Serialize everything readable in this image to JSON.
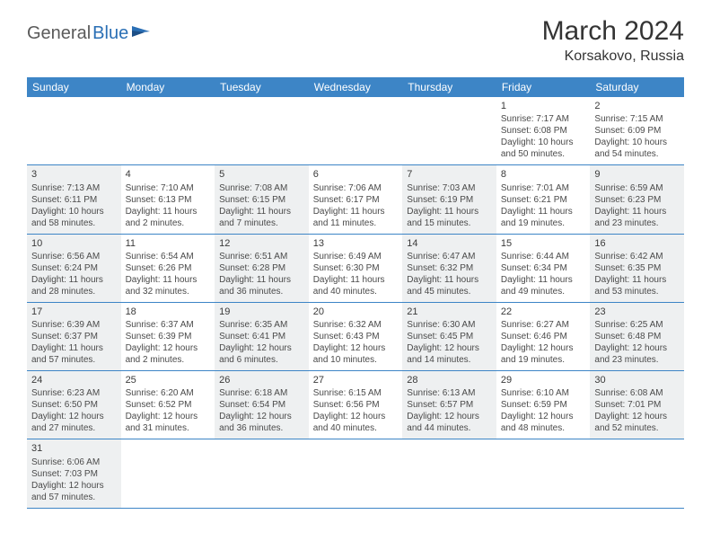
{
  "brand": {
    "name1": "General",
    "name2": "Blue"
  },
  "colors": {
    "header_bg": "#3d85c6",
    "header_text": "#ffffff",
    "row_border": "#3d85c6",
    "shaded_bg": "#eef0f1",
    "plain_bg": "#ffffff",
    "body_text": "#4a4a4a",
    "title_text": "#343434",
    "brand_gray": "#5a5a5a",
    "brand_blue": "#2a6fb5"
  },
  "title": "March 2024",
  "location": "Korsakovo, Russia",
  "day_headers": [
    "Sunday",
    "Monday",
    "Tuesday",
    "Wednesday",
    "Thursday",
    "Friday",
    "Saturday"
  ],
  "weeks": [
    [
      {
        "empty": true
      },
      {
        "empty": true
      },
      {
        "empty": true
      },
      {
        "empty": true
      },
      {
        "empty": true
      },
      {
        "day": "1",
        "sunrise": "Sunrise: 7:17 AM",
        "sunset": "Sunset: 6:08 PM",
        "dl1": "Daylight: 10 hours",
        "dl2": "and 50 minutes."
      },
      {
        "day": "2",
        "sunrise": "Sunrise: 7:15 AM",
        "sunset": "Sunset: 6:09 PM",
        "dl1": "Daylight: 10 hours",
        "dl2": "and 54 minutes."
      }
    ],
    [
      {
        "day": "3",
        "sunrise": "Sunrise: 7:13 AM",
        "sunset": "Sunset: 6:11 PM",
        "dl1": "Daylight: 10 hours",
        "dl2": "and 58 minutes.",
        "shaded": true
      },
      {
        "day": "4",
        "sunrise": "Sunrise: 7:10 AM",
        "sunset": "Sunset: 6:13 PM",
        "dl1": "Daylight: 11 hours",
        "dl2": "and 2 minutes."
      },
      {
        "day": "5",
        "sunrise": "Sunrise: 7:08 AM",
        "sunset": "Sunset: 6:15 PM",
        "dl1": "Daylight: 11 hours",
        "dl2": "and 7 minutes.",
        "shaded": true
      },
      {
        "day": "6",
        "sunrise": "Sunrise: 7:06 AM",
        "sunset": "Sunset: 6:17 PM",
        "dl1": "Daylight: 11 hours",
        "dl2": "and 11 minutes."
      },
      {
        "day": "7",
        "sunrise": "Sunrise: 7:03 AM",
        "sunset": "Sunset: 6:19 PM",
        "dl1": "Daylight: 11 hours",
        "dl2": "and 15 minutes.",
        "shaded": true
      },
      {
        "day": "8",
        "sunrise": "Sunrise: 7:01 AM",
        "sunset": "Sunset: 6:21 PM",
        "dl1": "Daylight: 11 hours",
        "dl2": "and 19 minutes."
      },
      {
        "day": "9",
        "sunrise": "Sunrise: 6:59 AM",
        "sunset": "Sunset: 6:23 PM",
        "dl1": "Daylight: 11 hours",
        "dl2": "and 23 minutes.",
        "shaded": true
      }
    ],
    [
      {
        "day": "10",
        "sunrise": "Sunrise: 6:56 AM",
        "sunset": "Sunset: 6:24 PM",
        "dl1": "Daylight: 11 hours",
        "dl2": "and 28 minutes.",
        "shaded": true
      },
      {
        "day": "11",
        "sunrise": "Sunrise: 6:54 AM",
        "sunset": "Sunset: 6:26 PM",
        "dl1": "Daylight: 11 hours",
        "dl2": "and 32 minutes."
      },
      {
        "day": "12",
        "sunrise": "Sunrise: 6:51 AM",
        "sunset": "Sunset: 6:28 PM",
        "dl1": "Daylight: 11 hours",
        "dl2": "and 36 minutes.",
        "shaded": true
      },
      {
        "day": "13",
        "sunrise": "Sunrise: 6:49 AM",
        "sunset": "Sunset: 6:30 PM",
        "dl1": "Daylight: 11 hours",
        "dl2": "and 40 minutes."
      },
      {
        "day": "14",
        "sunrise": "Sunrise: 6:47 AM",
        "sunset": "Sunset: 6:32 PM",
        "dl1": "Daylight: 11 hours",
        "dl2": "and 45 minutes.",
        "shaded": true
      },
      {
        "day": "15",
        "sunrise": "Sunrise: 6:44 AM",
        "sunset": "Sunset: 6:34 PM",
        "dl1": "Daylight: 11 hours",
        "dl2": "and 49 minutes."
      },
      {
        "day": "16",
        "sunrise": "Sunrise: 6:42 AM",
        "sunset": "Sunset: 6:35 PM",
        "dl1": "Daylight: 11 hours",
        "dl2": "and 53 minutes.",
        "shaded": true
      }
    ],
    [
      {
        "day": "17",
        "sunrise": "Sunrise: 6:39 AM",
        "sunset": "Sunset: 6:37 PM",
        "dl1": "Daylight: 11 hours",
        "dl2": "and 57 minutes.",
        "shaded": true
      },
      {
        "day": "18",
        "sunrise": "Sunrise: 6:37 AM",
        "sunset": "Sunset: 6:39 PM",
        "dl1": "Daylight: 12 hours",
        "dl2": "and 2 minutes."
      },
      {
        "day": "19",
        "sunrise": "Sunrise: 6:35 AM",
        "sunset": "Sunset: 6:41 PM",
        "dl1": "Daylight: 12 hours",
        "dl2": "and 6 minutes.",
        "shaded": true
      },
      {
        "day": "20",
        "sunrise": "Sunrise: 6:32 AM",
        "sunset": "Sunset: 6:43 PM",
        "dl1": "Daylight: 12 hours",
        "dl2": "and 10 minutes."
      },
      {
        "day": "21",
        "sunrise": "Sunrise: 6:30 AM",
        "sunset": "Sunset: 6:45 PM",
        "dl1": "Daylight: 12 hours",
        "dl2": "and 14 minutes.",
        "shaded": true
      },
      {
        "day": "22",
        "sunrise": "Sunrise: 6:27 AM",
        "sunset": "Sunset: 6:46 PM",
        "dl1": "Daylight: 12 hours",
        "dl2": "and 19 minutes."
      },
      {
        "day": "23",
        "sunrise": "Sunrise: 6:25 AM",
        "sunset": "Sunset: 6:48 PM",
        "dl1": "Daylight: 12 hours",
        "dl2": "and 23 minutes.",
        "shaded": true
      }
    ],
    [
      {
        "day": "24",
        "sunrise": "Sunrise: 6:23 AM",
        "sunset": "Sunset: 6:50 PM",
        "dl1": "Daylight: 12 hours",
        "dl2": "and 27 minutes.",
        "shaded": true
      },
      {
        "day": "25",
        "sunrise": "Sunrise: 6:20 AM",
        "sunset": "Sunset: 6:52 PM",
        "dl1": "Daylight: 12 hours",
        "dl2": "and 31 minutes."
      },
      {
        "day": "26",
        "sunrise": "Sunrise: 6:18 AM",
        "sunset": "Sunset: 6:54 PM",
        "dl1": "Daylight: 12 hours",
        "dl2": "and 36 minutes.",
        "shaded": true
      },
      {
        "day": "27",
        "sunrise": "Sunrise: 6:15 AM",
        "sunset": "Sunset: 6:56 PM",
        "dl1": "Daylight: 12 hours",
        "dl2": "and 40 minutes."
      },
      {
        "day": "28",
        "sunrise": "Sunrise: 6:13 AM",
        "sunset": "Sunset: 6:57 PM",
        "dl1": "Daylight: 12 hours",
        "dl2": "and 44 minutes.",
        "shaded": true
      },
      {
        "day": "29",
        "sunrise": "Sunrise: 6:10 AM",
        "sunset": "Sunset: 6:59 PM",
        "dl1": "Daylight: 12 hours",
        "dl2": "and 48 minutes."
      },
      {
        "day": "30",
        "sunrise": "Sunrise: 6:08 AM",
        "sunset": "Sunset: 7:01 PM",
        "dl1": "Daylight: 12 hours",
        "dl2": "and 52 minutes.",
        "shaded": true
      }
    ],
    [
      {
        "day": "31",
        "sunrise": "Sunrise: 6:06 AM",
        "sunset": "Sunset: 7:03 PM",
        "dl1": "Daylight: 12 hours",
        "dl2": "and 57 minutes.",
        "shaded": true
      },
      {
        "empty": true
      },
      {
        "empty": true
      },
      {
        "empty": true
      },
      {
        "empty": true
      },
      {
        "empty": true
      },
      {
        "empty": true
      }
    ]
  ]
}
